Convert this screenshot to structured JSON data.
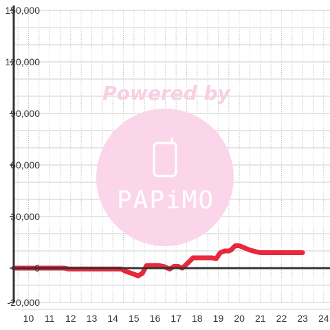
{
  "chart_data": {
    "type": "line",
    "x_ticks": [
      "10",
      "11",
      "12",
      "13",
      "14",
      "15",
      "16",
      "17",
      "18",
      "19",
      "20",
      "21",
      "22",
      "23",
      "24"
    ],
    "y_ticks": [
      "150,000",
      "120,000",
      "90,000",
      "60,000",
      "30,000",
      "0",
      "-20,000"
    ],
    "y_tick_values": [
      150000,
      120000,
      90000,
      60000,
      30000,
      0,
      -20000
    ],
    "xlim": [
      9.3,
      24.3
    ],
    "ylim": [
      -20000,
      150000
    ],
    "grid": true,
    "series": [
      {
        "color": "#e8283c",
        "x": [
          9.3,
          11.7,
          11.9,
          12.7,
          14.4,
          14.6,
          15.0,
          15.2,
          15.4,
          15.6,
          16.2,
          16.4,
          16.7,
          16.9,
          17.1,
          17.3,
          17.6,
          17.8,
          18.7,
          18.9,
          19.1,
          19.3,
          19.5,
          19.6,
          19.8,
          20.0,
          20.2,
          20.5,
          20.8,
          21.0,
          23.0
        ],
        "y": [
          0,
          0,
          -500,
          -500,
          -500,
          -1800,
          -3500,
          -4500,
          -3000,
          1500,
          1500,
          1000,
          -500,
          1000,
          1000,
          0,
          3500,
          6000,
          6000,
          5500,
          9000,
          10000,
          10000,
          10500,
          13000,
          13000,
          12000,
          10500,
          9500,
          9000,
          9000
        ]
      }
    ]
  },
  "watermark": {
    "text": "Powered by",
    "brand": "PAPiMO",
    "circle_color": "#fbd6ea",
    "text_color": "#f8cfe3"
  }
}
